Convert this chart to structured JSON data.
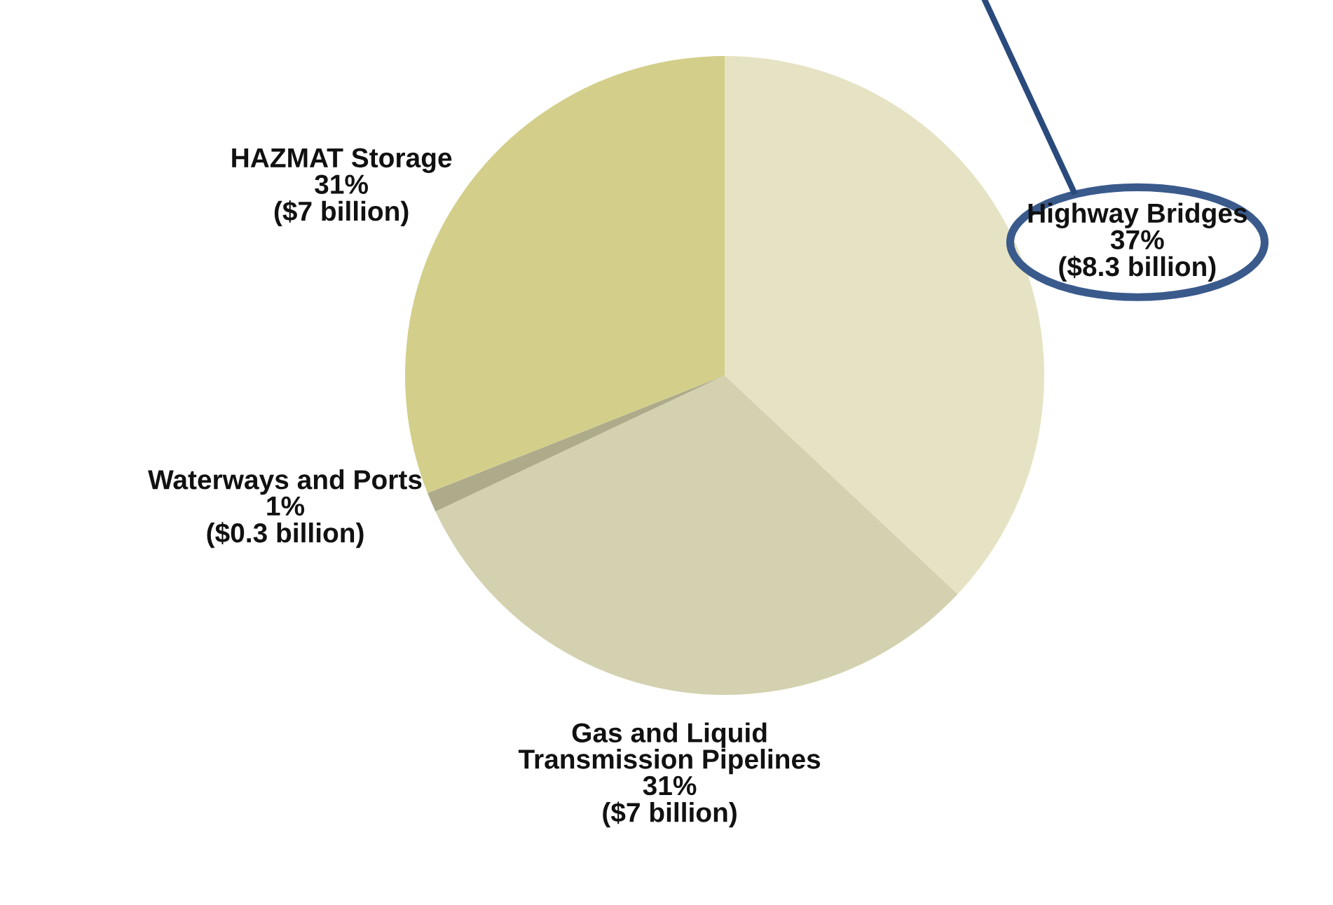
{
  "chart_data": {
    "type": "pie",
    "categories": [
      "Highway Bridges",
      "Gas and Liquid\nTransmission Pipelines",
      "Waterways and Ports",
      "HAZMAT Storage"
    ],
    "values": [
      37,
      31,
      1,
      31
    ],
    "colors": [
      "#e6e3c4",
      "#d4d1b0",
      "#aeab8a",
      "#d3cf8a"
    ],
    "value_labels": [
      "37%\n($8.3 billion)",
      "31%\n($7 billion)",
      "1%\n($0.3 billion)",
      "31%\n($7 billion)"
    ],
    "legend": false
  }
}
